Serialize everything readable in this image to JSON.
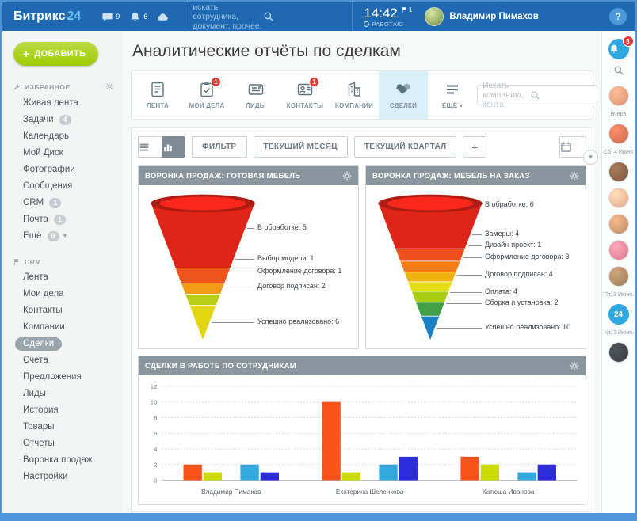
{
  "topbar": {
    "logo_brand": "Битрикс",
    "logo_suffix": "24",
    "chat_count": "9",
    "notif_count": "6",
    "search_placeholder": "искать сотрудника, документ, прочее.",
    "time": "14:42",
    "flag_count": "1",
    "status": "РАБОТАЮ",
    "user_name": "Владимир Пимахов",
    "help_label": "?"
  },
  "sidebar": {
    "add_button": "ДОБАВИТЬ",
    "sections": [
      {
        "title": "ИЗБРАННОЕ",
        "icon": "wrench",
        "has_gear": true,
        "items": [
          {
            "key": "live-feed",
            "label": "Живая лента"
          },
          {
            "key": "tasks",
            "label": "Задачи",
            "badge": "4"
          },
          {
            "key": "calendar",
            "label": "Календарь"
          },
          {
            "key": "my-drive",
            "label": "Мой Диск"
          },
          {
            "key": "photos",
            "label": "Фотографии"
          },
          {
            "key": "messages",
            "label": "Сообщения"
          },
          {
            "key": "crm",
            "label": "CRM",
            "badge": "1"
          },
          {
            "key": "mail",
            "label": "Почта",
            "badge": "1"
          },
          {
            "key": "more",
            "label": "Ещё",
            "badge": "9",
            "caret": true
          }
        ]
      },
      {
        "title": "CRM",
        "icon": "flag",
        "has_gear": false,
        "items": [
          {
            "key": "feed",
            "label": "Лента"
          },
          {
            "key": "my-deals",
            "label": "Мои дела"
          },
          {
            "key": "contacts",
            "label": "Контакты"
          },
          {
            "key": "companies",
            "label": "Компании"
          },
          {
            "key": "deals",
            "label": "Сделки",
            "selected": true
          },
          {
            "key": "invoices",
            "label": "Счета"
          },
          {
            "key": "quotes",
            "label": "Предложения"
          },
          {
            "key": "leads",
            "label": "Лиды"
          },
          {
            "key": "history",
            "label": "История"
          },
          {
            "key": "products",
            "label": "Товары"
          },
          {
            "key": "reports",
            "label": "Отчеты"
          },
          {
            "key": "sales-funnel",
            "label": "Воронка продаж"
          },
          {
            "key": "settings",
            "label": "Настройки"
          }
        ]
      }
    ]
  },
  "main": {
    "title": "Аналитические отчёты по сделкам",
    "tabs": [
      {
        "key": "feed",
        "label": "ЛЕНТА",
        "icon": "feed"
      },
      {
        "key": "my-tasks",
        "label": "МОИ ДЕЛА",
        "icon": "tasks",
        "badge": "1"
      },
      {
        "key": "leads",
        "label": "ЛИДЫ",
        "icon": "leads"
      },
      {
        "key": "contacts",
        "label": "КОНТАКТЫ",
        "icon": "contacts",
        "badge": "1"
      },
      {
        "key": "companies",
        "label": "КОМПАНИИ",
        "icon": "companies"
      },
      {
        "key": "deals",
        "label": "СДЕЛКИ",
        "icon": "deals",
        "selected": true
      },
      {
        "key": "more",
        "label": "ЕЩЁ",
        "icon": "more",
        "caret": true
      }
    ],
    "tab_search_placeholder": "Искать компанию, конта",
    "toolbar": {
      "filter": "ФИЛЬТР",
      "current_month": "ТЕКУЩИЙ МЕСЯЦ",
      "current_quarter": "ТЕКУЩИЙ КВАРТАЛ",
      "add": "+"
    }
  },
  "chart_data": [
    {
      "type": "funnel",
      "title": "ВОРОНКА ПРОДАЖ: ГОТОВАЯ МЕБЕЛЬ",
      "colors": [
        "#df2418",
        "#f0561c",
        "#f59a16",
        "#b6cf14",
        "#e3d512"
      ],
      "stages": [
        {
          "label": "В обработке",
          "value": 5
        },
        {
          "label": "Выбор модели",
          "value": 1
        },
        {
          "label": "Оформление договора",
          "value": 1
        },
        {
          "label": "Договор подписан",
          "value": 2
        },
        {
          "label": "Успешно реализовано",
          "value": 6
        }
      ]
    },
    {
      "type": "funnel",
      "title": "ВОРОНКА ПРОДАЖ: МЕБЕЛЬ НА ЗАКАЗ",
      "colors": [
        "#df2418",
        "#ee4f1c",
        "#f57c16",
        "#f0b20e",
        "#e3dd12",
        "#a9cc14",
        "#43a047",
        "#1a7fc4"
      ],
      "stages": [
        {
          "label": "В обработке",
          "value": 6
        },
        {
          "label": "Замеры",
          "value": 4
        },
        {
          "label": "Дизайн-проект",
          "value": 1
        },
        {
          "label": "Оформление договора",
          "value": 3
        },
        {
          "label": "Договор подписан",
          "value": 4
        },
        {
          "label": "Оплата",
          "value": 4
        },
        {
          "label": "Сборка и установка",
          "value": 2
        },
        {
          "label": "Успешно реализовано",
          "value": 10
        }
      ]
    },
    {
      "type": "bar",
      "title": "СДЕЛКИ В РАБОТЕ ПО СОТРУДНИКАМ",
      "categories": [
        "Владимир Пимахов",
        "Екатерина Шеленкова",
        "Катюша Иванова"
      ],
      "series": [
        {
          "name": "series-orange",
          "color": "#f9541a",
          "values": [
            2,
            10,
            3
          ]
        },
        {
          "name": "series-yellow",
          "color": "#cddb00",
          "values": [
            1,
            1,
            2
          ]
        },
        {
          "name": "series-lightblue",
          "color": "#33a9e0",
          "values": [
            2,
            2,
            1
          ]
        },
        {
          "name": "series-darkblue",
          "color": "#2d2ddb",
          "values": [
            1,
            3,
            2
          ]
        }
      ],
      "ylim": [
        0,
        12
      ],
      "ytick_step": 2,
      "grid": true,
      "legend": false
    }
  ],
  "right_rail": {
    "notification_badge": "8",
    "entries": [
      {
        "kind": "avatar",
        "tone": "#d98f6f"
      },
      {
        "kind": "label",
        "text": "Вчера"
      },
      {
        "kind": "avatar",
        "tone": "#c96a4f"
      },
      {
        "kind": "label",
        "text": "Сб, 4 Июня"
      },
      {
        "kind": "avatar",
        "tone": "#7d5a43"
      },
      {
        "kind": "avatar",
        "tone": "#e0a68a"
      },
      {
        "kind": "avatar",
        "tone": "#b98a66"
      },
      {
        "kind": "avatar",
        "tone": "#d77b8a"
      },
      {
        "kind": "avatar",
        "tone": "#9a7a5a"
      },
      {
        "kind": "label",
        "text": "Пт, 3 Июня"
      },
      {
        "kind": "logo24",
        "text": "24"
      },
      {
        "kind": "label",
        "text": "Чт, 2 Июня"
      },
      {
        "kind": "avatar",
        "tone": "#3a3f44"
      }
    ]
  }
}
